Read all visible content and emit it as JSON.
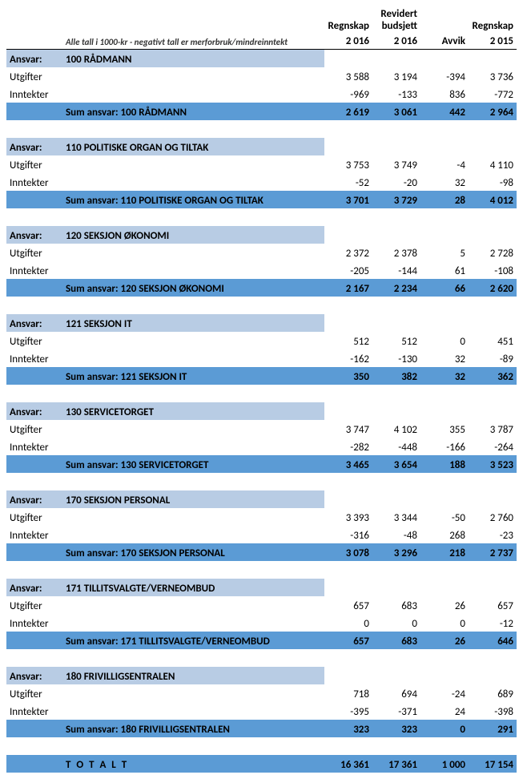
{
  "headers": {
    "regnskap_a": "Regnskap",
    "regnskap_a_year": "2 016",
    "revidert": "Revidert budsjett",
    "revidert_year": "2 016",
    "avvik": "Avvik",
    "regnskap_b": "Regnskap",
    "regnskap_b_year": "2 015"
  },
  "note": "Alle tall i 1000-kr - negativt tall er merforbruk/mindreinntekt",
  "ansvar_label": "Ansvar:",
  "utgifter_label": "Utgifter",
  "inntekter_label": "Inntekter",
  "sections": [
    {
      "code_title": "100 RÅDMANN",
      "utgifter": {
        "r16": "3 588",
        "rb16": "3 194",
        "avvik": "-394",
        "r15": "3 736"
      },
      "inntekter": {
        "r16": "-969",
        "rb16": "-133",
        "avvik": "836",
        "r15": "-772"
      },
      "sum_label": "Sum ansvar: 100 RÅDMANN",
      "sum": {
        "r16": "2 619",
        "rb16": "3 061",
        "avvik": "442",
        "r15": "2 964"
      }
    },
    {
      "code_title": "110 POLITISKE ORGAN OG TILTAK",
      "utgifter": {
        "r16": "3 753",
        "rb16": "3 749",
        "avvik": "-4",
        "r15": "4 110"
      },
      "inntekter": {
        "r16": "-52",
        "rb16": "-20",
        "avvik": "32",
        "r15": "-98"
      },
      "sum_label": "Sum ansvar: 110 POLITISKE ORGAN OG TILTAK",
      "sum": {
        "r16": "3 701",
        "rb16": "3 729",
        "avvik": "28",
        "r15": "4 012"
      }
    },
    {
      "code_title": "120 SEKSJON ØKONOMI",
      "utgifter": {
        "r16": "2 372",
        "rb16": "2 378",
        "avvik": "5",
        "r15": "2 728"
      },
      "inntekter": {
        "r16": "-205",
        "rb16": "-144",
        "avvik": "61",
        "r15": "-108"
      },
      "sum_label": "Sum ansvar: 120 SEKSJON ØKONOMI",
      "sum": {
        "r16": "2 167",
        "rb16": "2 234",
        "avvik": "66",
        "r15": "2 620"
      }
    },
    {
      "code_title": "121 SEKSJON IT",
      "utgifter": {
        "r16": "512",
        "rb16": "512",
        "avvik": "0",
        "r15": "451"
      },
      "inntekter": {
        "r16": "-162",
        "rb16": "-130",
        "avvik": "32",
        "r15": "-89"
      },
      "sum_label": "Sum ansvar: 121 SEKSJON IT",
      "sum": {
        "r16": "350",
        "rb16": "382",
        "avvik": "32",
        "r15": "362"
      }
    },
    {
      "code_title": "130 SERVICETORGET",
      "utgifter": {
        "r16": "3 747",
        "rb16": "4 102",
        "avvik": "355",
        "r15": "3 787"
      },
      "inntekter": {
        "r16": "-282",
        "rb16": "-448",
        "avvik": "-166",
        "r15": "-264"
      },
      "sum_label": "Sum ansvar: 130 SERVICETORGET",
      "sum": {
        "r16": "3 465",
        "rb16": "3 654",
        "avvik": "188",
        "r15": "3 523"
      }
    },
    {
      "code_title": "170 SEKSJON PERSONAL",
      "utgifter": {
        "r16": "3 393",
        "rb16": "3 344",
        "avvik": "-50",
        "r15": "2 760"
      },
      "inntekter": {
        "r16": "-316",
        "rb16": "-48",
        "avvik": "268",
        "r15": "-23"
      },
      "sum_label": "Sum ansvar: 170 SEKSJON PERSONAL",
      "sum": {
        "r16": "3 078",
        "rb16": "3 296",
        "avvik": "218",
        "r15": "2 737"
      }
    },
    {
      "code_title": "171 TILLITSVALGTE/VERNEOMBUD",
      "utgifter": {
        "r16": "657",
        "rb16": "683",
        "avvik": "26",
        "r15": "657"
      },
      "inntekter": {
        "r16": "0",
        "rb16": "0",
        "avvik": "0",
        "r15": "-12"
      },
      "sum_label": "Sum ansvar: 171 TILLITSVALGTE/VERNEOMBUD",
      "sum": {
        "r16": "657",
        "rb16": "683",
        "avvik": "26",
        "r15": "646"
      }
    },
    {
      "code_title": "180 FRIVILLIGSENTRALEN",
      "utgifter": {
        "r16": "718",
        "rb16": "694",
        "avvik": "-24",
        "r15": "689"
      },
      "inntekter": {
        "r16": "-395",
        "rb16": "-371",
        "avvik": "24",
        "r15": "-398"
      },
      "sum_label": "Sum ansvar: 180 FRIVILLIGSENTRALEN",
      "sum": {
        "r16": "323",
        "rb16": "323",
        "avvik": "0",
        "r15": "291"
      }
    }
  ],
  "total": {
    "label": "T O T A L T",
    "r16": "16 361",
    "rb16": "17 361",
    "avvik": "1 000",
    "r15": "17 154"
  },
  "colors": {
    "light_blue": "#b8cce4",
    "mid_blue": "#5b9bd5"
  }
}
